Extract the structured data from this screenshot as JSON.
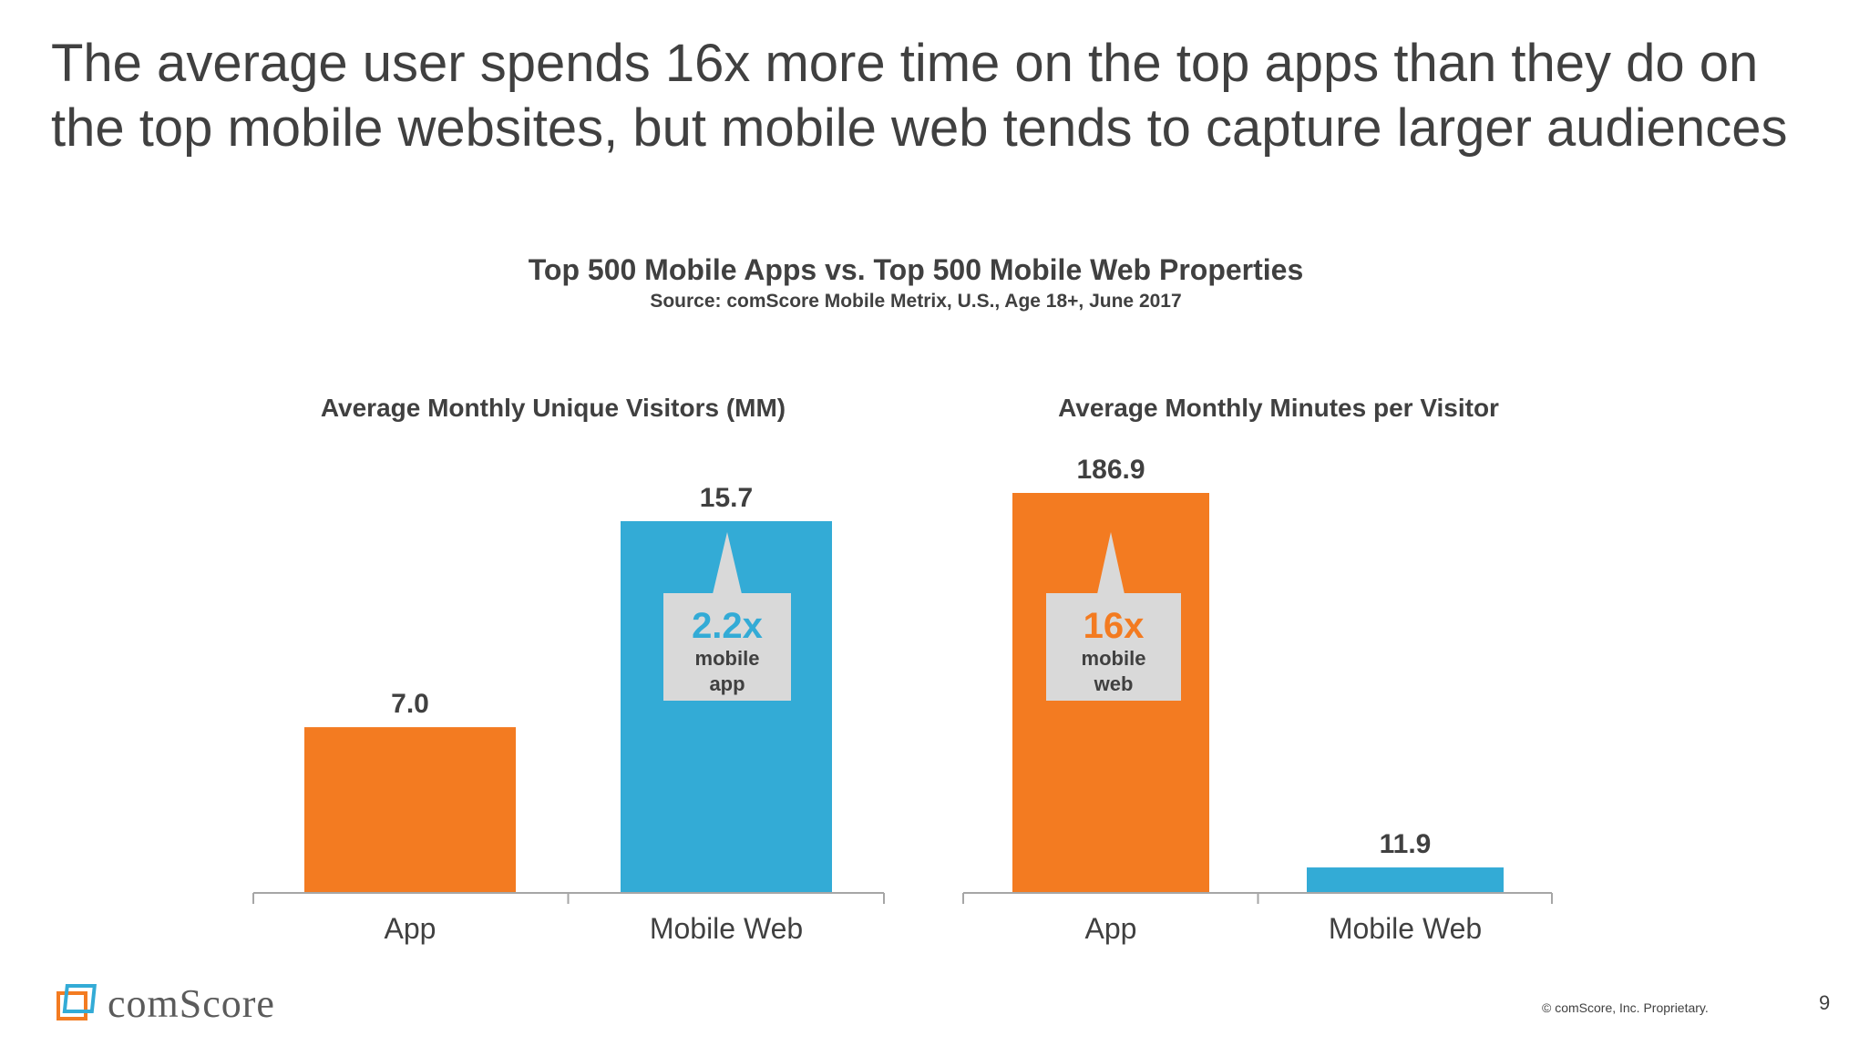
{
  "slide": {
    "headline": "The average user spends 16x more time on the top apps than they do on the top mobile websites, but mobile web tends to capture larger audiences",
    "chart_title": "Top 500 Mobile Apps vs. Top 500 Mobile Web Properties",
    "chart_source": "Source: comScore Mobile Metrix, U.S., Age 18+, June 2017",
    "logo_text": "comScore",
    "copyright": "© comScore, Inc. Proprietary.",
    "page_number": "9"
  },
  "callouts": [
    {
      "big": "2.2x",
      "line1": "mobile",
      "line2": "app",
      "color": "#33abd6"
    },
    {
      "big": "16x",
      "line1": "mobile",
      "line2": "web",
      "color": "#f37b21"
    }
  ],
  "colors": {
    "app": "#f37b21",
    "mobile_web": "#33abd6",
    "callout_bg": "#d9d9d9"
  },
  "chart_data": [
    {
      "type": "bar",
      "title": "Average Monthly Unique Visitors (MM)",
      "categories": [
        "App",
        "Mobile Web"
      ],
      "values": [
        7.0,
        15.7
      ],
      "data_labels": [
        "7.0",
        "15.7"
      ],
      "ylim": [
        0,
        15.7
      ],
      "grid": false
    },
    {
      "type": "bar",
      "title": "Average Monthly Minutes per Visitor",
      "categories": [
        "App",
        "Mobile Web"
      ],
      "values": [
        186.9,
        11.9
      ],
      "data_labels": [
        "186.9",
        "11.9"
      ],
      "ylim": [
        0,
        186.9
      ],
      "grid": false
    }
  ]
}
